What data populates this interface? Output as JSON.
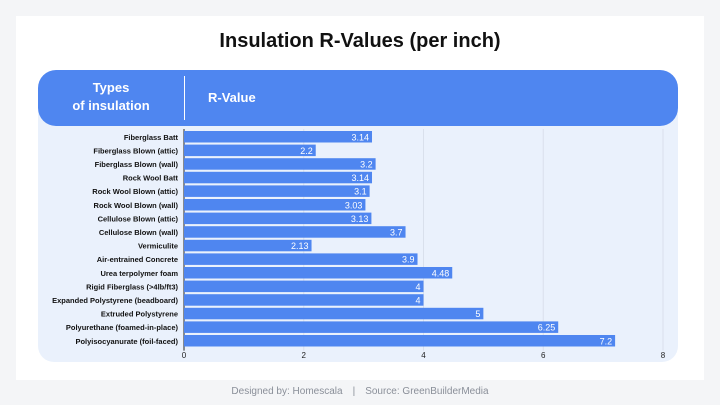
{
  "header": {
    "types_line1": "Types",
    "types_line2": "of insulation",
    "rvalue_label": "R-Value"
  },
  "footer": {
    "designed_by": "Designed by: Homescala",
    "separator": "|",
    "source": "Source: GreenBuilderMedia"
  },
  "colors": {
    "bar": "#4f86f0",
    "header": "#4f86f0",
    "panel": "#eaf1fc"
  },
  "chart_data": {
    "type": "bar",
    "orientation": "horizontal",
    "title": "Insulation R-Values (per inch)",
    "categories": [
      "Fiberglass Batt",
      "Fiberglass Blown (attic)",
      "Fiberglass Blown (wall)",
      "Rock Wool Batt",
      "Rock Wool Blown (attic)",
      "Rock Wool Blown (wall)",
      "Cellulose Blown (attic)",
      "Cellulose Blown (wall)",
      "Vermiculite",
      "Air-entrained Concrete",
      "Urea terpolymer foam",
      "Rigid Fiberglass (>4lb/ft3)",
      "Expanded Polystyrene (beadboard)",
      "Extruded Polystyrene",
      "Polyurethane (foamed-in-place)",
      "Polyisocyanurate (foil-faced)"
    ],
    "values": [
      3.14,
      2.2,
      3.2,
      3.14,
      3.1,
      3.03,
      3.13,
      3.7,
      2.13,
      3.9,
      4.48,
      4,
      4,
      5,
      6.25,
      7.2
    ],
    "value_labels": [
      "3.14",
      "2.2",
      "3.2",
      "3.14",
      "3.1",
      "3.03",
      "3.13",
      "3.7",
      "2.13",
      "3.9",
      "4.48",
      "4",
      "4",
      "5",
      "6.25",
      "7.2"
    ],
    "xlim": [
      0,
      8
    ],
    "xticks": [
      0,
      2,
      4,
      6,
      8
    ],
    "xtick_labels": [
      "0",
      "2",
      "4",
      "6",
      "8"
    ],
    "grid": true,
    "legend": "none"
  }
}
